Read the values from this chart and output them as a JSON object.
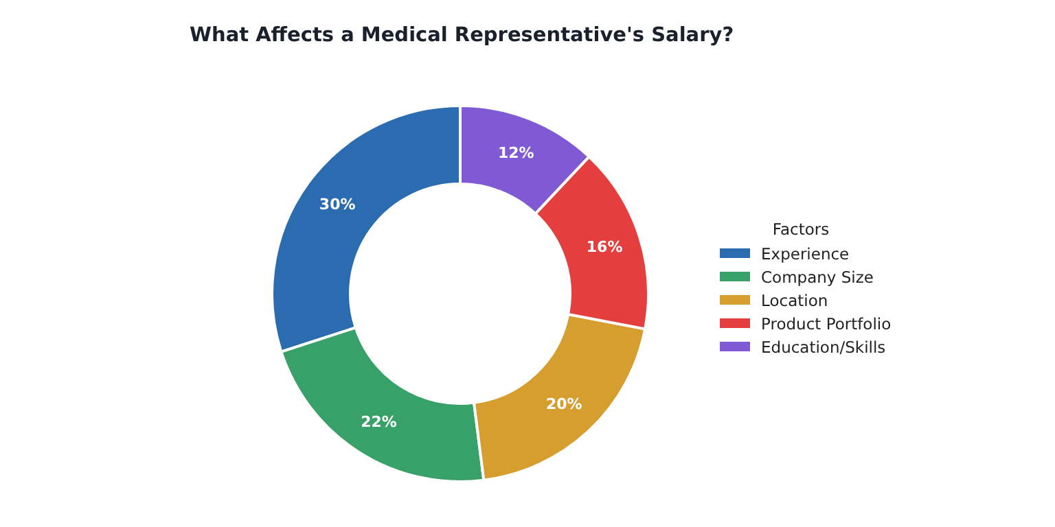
{
  "chart_data": {
    "type": "donut",
    "title": "What Affects a Medical Representative's Salary?",
    "legend_title": "Factors",
    "legend": "right",
    "categories": [
      "Experience",
      "Company Size",
      "Location",
      "Product Portfolio",
      "Education/Skills"
    ],
    "values": [
      30,
      22,
      20,
      16,
      12
    ],
    "value_labels": [
      "30%",
      "22%",
      "20%",
      "16%",
      "12%"
    ],
    "colors": [
      "#2b6cb0",
      "#38a169",
      "#d69e2e",
      "#e53e3e",
      "#805ad5"
    ]
  }
}
